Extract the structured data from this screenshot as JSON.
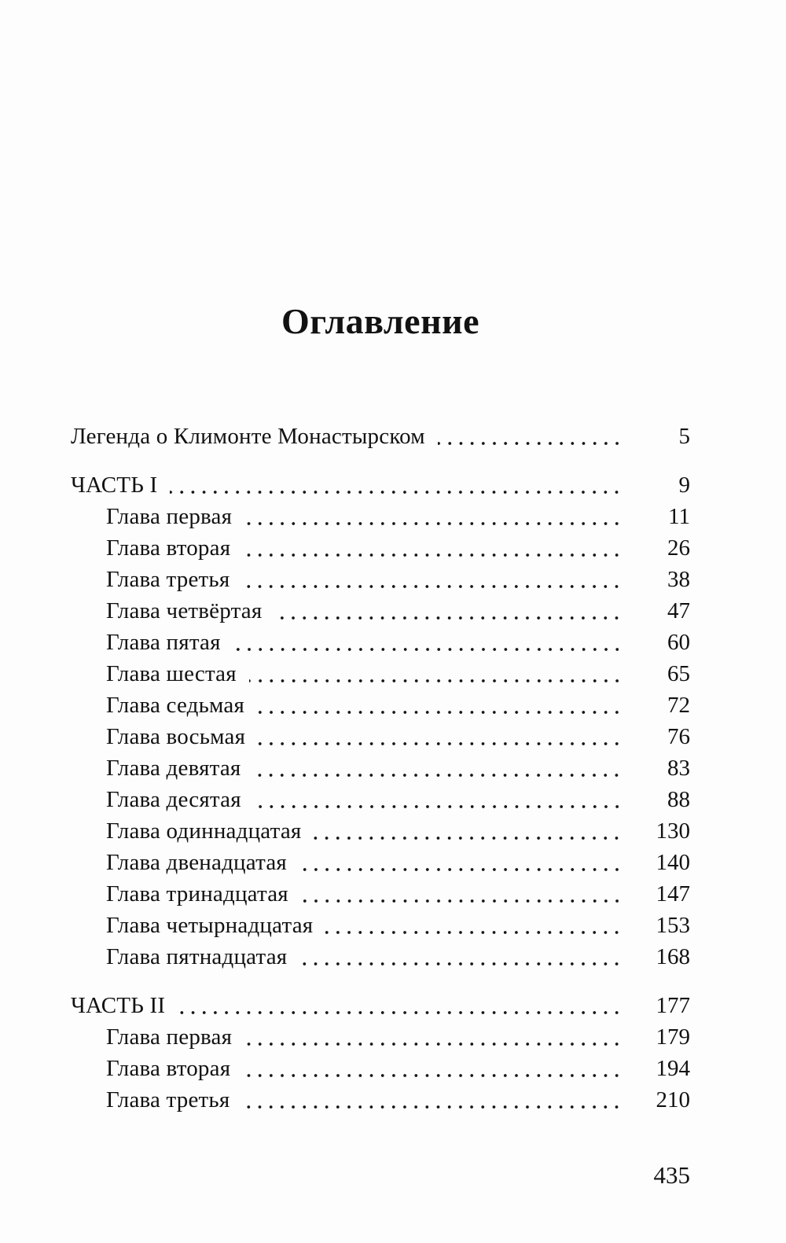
{
  "page": {
    "title": "Оглавление",
    "folio": "435"
  },
  "colors": {
    "background": "#fdfdfd",
    "text": "#121212"
  },
  "toc": {
    "entries": [
      {
        "label": "Легенда о Климонте Монастырском",
        "page": "5",
        "level": 0,
        "gap_before": false
      },
      {
        "label": "ЧАСТЬ I",
        "page": "9",
        "level": 0,
        "gap_before": true
      },
      {
        "label": "Глава первая",
        "page": "11",
        "level": 1,
        "gap_before": false
      },
      {
        "label": "Глава вторая",
        "page": "26",
        "level": 1,
        "gap_before": false
      },
      {
        "label": "Глава третья",
        "page": "38",
        "level": 1,
        "gap_before": false
      },
      {
        "label": "Глава четвёртая",
        "page": "47",
        "level": 1,
        "gap_before": false
      },
      {
        "label": "Глава пятая",
        "page": "60",
        "level": 1,
        "gap_before": false
      },
      {
        "label": "Глава шестая",
        "page": "65",
        "level": 1,
        "gap_before": false
      },
      {
        "label": "Глава седьмая",
        "page": "72",
        "level": 1,
        "gap_before": false
      },
      {
        "label": "Глава восьмая",
        "page": "76",
        "level": 1,
        "gap_before": false
      },
      {
        "label": "Глава девятая",
        "page": "83",
        "level": 1,
        "gap_before": false
      },
      {
        "label": "Глава десятая",
        "page": "88",
        "level": 1,
        "gap_before": false
      },
      {
        "label": "Глава одиннадцатая",
        "page": "130",
        "level": 1,
        "gap_before": false
      },
      {
        "label": "Глава двенадцатая",
        "page": "140",
        "level": 1,
        "gap_before": false
      },
      {
        "label": "Глава тринадцатая",
        "page": "147",
        "level": 1,
        "gap_before": false
      },
      {
        "label": "Глава четырнадцатая",
        "page": "153",
        "level": 1,
        "gap_before": false
      },
      {
        "label": "Глава пятнадцатая",
        "page": "168",
        "level": 1,
        "gap_before": false
      },
      {
        "label": "ЧАСТЬ II",
        "page": "177",
        "level": 0,
        "gap_before": true
      },
      {
        "label": "Глава первая",
        "page": "179",
        "level": 1,
        "gap_before": false
      },
      {
        "label": "Глава вторая",
        "page": "194",
        "level": 1,
        "gap_before": false
      },
      {
        "label": "Глава третья",
        "page": "210",
        "level": 1,
        "gap_before": false
      }
    ]
  }
}
